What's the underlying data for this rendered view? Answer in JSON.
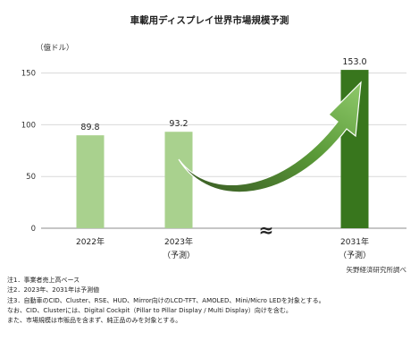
{
  "chart_data": {
    "type": "bar",
    "title": "車載用ディスプレイ世界市場規模予測",
    "ylabel": "（億ドル）",
    "ylim": [
      0,
      160
    ],
    "yticks": [
      0,
      50,
      100,
      150
    ],
    "grid": true,
    "categories": [
      {
        "label": "2022年",
        "sub": ""
      },
      {
        "label": "2023年",
        "sub": "（予測）"
      },
      {
        "label": "2031年",
        "sub": "（予測）"
      }
    ],
    "values": [
      89.8,
      93.2,
      153.0
    ],
    "value_labels": [
      "89.8",
      "93.2",
      "153.0"
    ],
    "colors": [
      "#a9d18e",
      "#a9d18e",
      "#38761d"
    ],
    "axis_break": "≈",
    "arrow": {
      "from": "2023年",
      "to": "2031年",
      "color": "#4e9a2f"
    },
    "source": "矢野経済研究所調べ"
  },
  "notes": [
    "注1．事業者売上高ベース",
    "注2．2023年、2031年は予測値",
    "注3．自動車のCID、Cluster、RSE、HUD、Mirror向けのLCD-TFT、AMOLED、Mini/Micro LEDを対象とする。",
    "なお、CID、Clusterには、Digital Cockpit（Pillar to Pillar Display / Multi Display）向けを含む。",
    "また、市場規模は市販品を含まず、純正品のみを対象とする。"
  ]
}
